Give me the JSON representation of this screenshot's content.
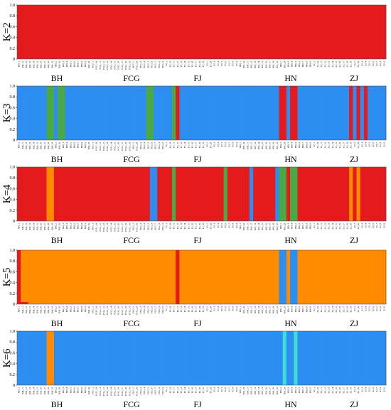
{
  "chart_data": {
    "type": "bar",
    "stacked": true,
    "y_ticks": [
      "0",
      "0.2",
      "0.4",
      "0.6",
      "0.8",
      "1.0"
    ],
    "ylim": [
      0,
      1
    ],
    "groups": [
      "BH",
      "FCG",
      "FJ",
      "HN",
      "ZJ"
    ],
    "colors": {
      "red": "#e41a1c",
      "blue": "#2c8ef0",
      "green": "#4aa845",
      "orange": "#ff8c00",
      "cyan": "#40dcd8"
    },
    "individuals": [
      "BH_1",
      "BH_11",
      "BH_12",
      "BH_13",
      "BH_14",
      "BH_15",
      "BH_16",
      "BH_17",
      "BH_18",
      "BH_19",
      "BH_2",
      "BH_20",
      "BH_3",
      "BH_4",
      "BH_5",
      "BH_6",
      "BH_7",
      "BH_8",
      "BH_9",
      "BH_10",
      "FCG_1",
      "FCG_10",
      "FCG_11",
      "FCG_12",
      "FCG_13",
      "FCG_14",
      "FCG_15",
      "FCG_16",
      "FCG_17",
      "FCG_18",
      "FCG_19",
      "FCG_2",
      "FCG_20",
      "FCG_3",
      "FCG_4",
      "FCG_5",
      "FCG_6",
      "FCG_7",
      "FCG_8",
      "FCG_9",
      "FJ_1",
      "FJ_10",
      "FJ_11",
      "FJ_12",
      "FJ_13",
      "FJ_14",
      "FJ_15",
      "FJ_16",
      "FJ_17",
      "FJ_18",
      "FJ_19",
      "FJ_2",
      "FJ_20",
      "FJ_3",
      "FJ_4",
      "FJ_5",
      "FJ_6",
      "FJ_7",
      "FJ_8",
      "FJ_9",
      "HN_1",
      "HN_10",
      "HN_11",
      "HN_12",
      "HN_13",
      "HN_14",
      "HN_15",
      "HN_16",
      "HN_17",
      "HN_18",
      "HN_19",
      "HN_2",
      "HN_20",
      "HN_3",
      "HN_4",
      "HN_5",
      "HN_6",
      "HN_7",
      "HN_8",
      "HN_9",
      "ZJ_1",
      "ZJ_10",
      "ZJ_11",
      "ZJ_12",
      "ZJ_13",
      "ZJ_14",
      "ZJ_15",
      "ZJ_16",
      "ZJ_17",
      "ZJ_18",
      "ZJ_19",
      "ZJ_2",
      "ZJ_20",
      "ZJ_3",
      "ZJ_4",
      "ZJ_5",
      "ZJ_6",
      "ZJ_7",
      "ZJ_8",
      "ZJ_9"
    ],
    "panels": [
      {
        "label": "K=2",
        "base": "red",
        "segments": []
      },
      {
        "label": "K=3",
        "base": "blue",
        "segments": [
          {
            "from": 8,
            "to": 9,
            "color": "green"
          },
          {
            "from": 11,
            "to": 12,
            "color": "green"
          },
          {
            "from": 35,
            "to": 36,
            "color": "green"
          },
          {
            "from": 42,
            "to": 42,
            "color": "green"
          },
          {
            "from": 43,
            "to": 43,
            "color": "red"
          },
          {
            "from": 71,
            "to": 72,
            "color": "red"
          },
          {
            "from": 74,
            "to": 75,
            "color": "red"
          },
          {
            "from": 90,
            "to": 90,
            "color": "red"
          },
          {
            "from": 92,
            "to": 92,
            "color": "red"
          },
          {
            "from": 94,
            "to": 94,
            "color": "red"
          }
        ]
      },
      {
        "label": "K=4",
        "base": "red",
        "segments": [
          {
            "from": 8,
            "to": 9,
            "color": "orange"
          },
          {
            "from": 36,
            "to": 37,
            "color": "blue"
          },
          {
            "from": 42,
            "to": 42,
            "color": "green"
          },
          {
            "from": 56,
            "to": 56,
            "color": "green"
          },
          {
            "from": 63,
            "to": 63,
            "color": "blue"
          },
          {
            "from": 70,
            "to": 70,
            "color": "blue"
          },
          {
            "from": 71,
            "to": 72,
            "color": "green"
          },
          {
            "from": 74,
            "to": 75,
            "color": "green"
          },
          {
            "from": 90,
            "to": 90,
            "color": "orange"
          },
          {
            "from": 92,
            "to": 92,
            "color": "orange"
          }
        ]
      },
      {
        "label": "K=5",
        "base": "orange",
        "segments": [
          {
            "from": 0,
            "to": 0,
            "color": "red"
          },
          {
            "from": 43,
            "to": 43,
            "color": "red"
          },
          {
            "from": 71,
            "to": 72,
            "color": "blue"
          },
          {
            "from": 74,
            "to": 75,
            "color": "blue"
          }
        ]
      },
      {
        "label": "K=6",
        "base": "blue",
        "segments": [
          {
            "from": 8,
            "to": 9,
            "color": "orange"
          },
          {
            "from": 72,
            "to": 72,
            "color": "cyan"
          },
          {
            "from": 75,
            "to": 75,
            "color": "cyan"
          }
        ]
      }
    ]
  }
}
